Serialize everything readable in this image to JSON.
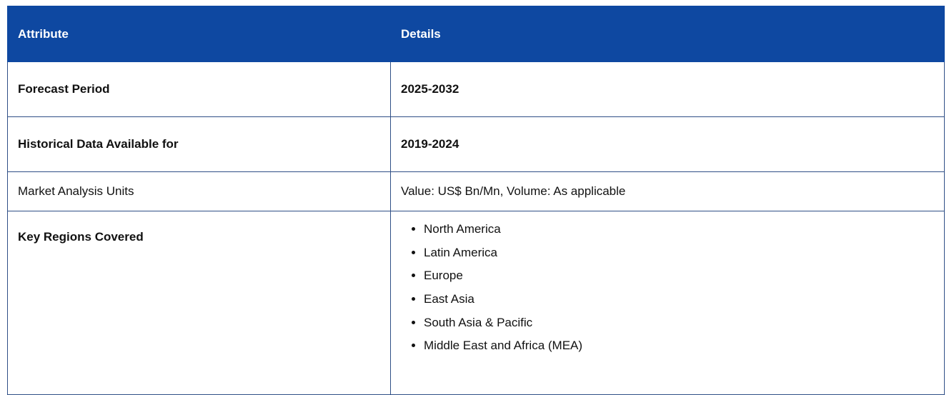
{
  "table": {
    "headers": {
      "attribute": "Attribute",
      "details": "Details"
    },
    "rows": [
      {
        "attribute": "Forecast Period",
        "details": "2025-2032"
      },
      {
        "attribute": "Historical Data Available for",
        "details": "2019-2024"
      },
      {
        "attribute": "Market Analysis Units",
        "details": "Value: US$ Bn/Mn, Volume: As applicable"
      },
      {
        "attribute": "Key Regions Covered",
        "details": [
          "North America",
          "Latin America",
          "Europe",
          "East Asia",
          "South Asia & Pacific",
          "Middle East and Africa (MEA)"
        ]
      }
    ]
  },
  "colors": {
    "header_background": "#0e48a1",
    "header_text": "#ffffff",
    "border": "#2f4f86"
  }
}
